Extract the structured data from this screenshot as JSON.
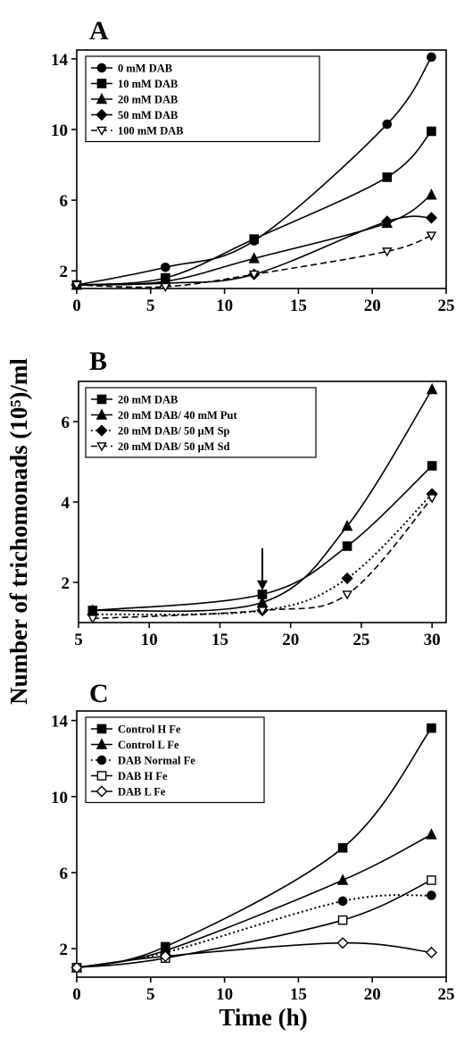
{
  "chart_data": [
    {
      "type": "line",
      "panel": "A",
      "xlim": [
        0,
        25
      ],
      "ylim": [
        1,
        14.5
      ],
      "xticks": [
        0,
        5,
        10,
        15,
        20,
        25
      ],
      "yticks": [
        2,
        6,
        10,
        14
      ],
      "legend_position": "top-left",
      "series": [
        {
          "name": "0 mM DAB",
          "marker": "circle",
          "dash": "solid",
          "x": [
            0,
            6,
            12,
            21,
            24
          ],
          "y": [
            1.2,
            2.2,
            3.7,
            10.3,
            14.1
          ]
        },
        {
          "name": "10 mM DAB",
          "marker": "square",
          "dash": "solid",
          "x": [
            0,
            6,
            12,
            21,
            24
          ],
          "y": [
            1.2,
            1.6,
            3.8,
            7.3,
            9.9
          ]
        },
        {
          "name": "20 mM DAB",
          "marker": "triangle",
          "dash": "solid",
          "x": [
            0,
            6,
            12,
            21,
            24
          ],
          "y": [
            1.2,
            1.4,
            2.7,
            4.7,
            6.3
          ]
        },
        {
          "name": "50 mM DAB",
          "marker": "diamond",
          "dash": "solid",
          "x": [
            0,
            6,
            12,
            21,
            24
          ],
          "y": [
            1.2,
            1.3,
            1.8,
            4.8,
            5.0
          ]
        },
        {
          "name": "100 mM DAB",
          "marker": "triangle-down-open",
          "dash": "dashed",
          "x": [
            0,
            6,
            12,
            21,
            24
          ],
          "y": [
            1.2,
            1.1,
            1.8,
            3.1,
            4.0
          ]
        }
      ]
    },
    {
      "type": "line",
      "panel": "B",
      "xlim": [
        5,
        31
      ],
      "ylim": [
        1,
        7
      ],
      "xticks": [
        5,
        10,
        15,
        20,
        25,
        30
      ],
      "yticks": [
        2,
        4,
        6
      ],
      "legend_position": "top-left",
      "annotation": "arrow at x = 18",
      "series": [
        {
          "name": "20 mM DAB",
          "marker": "square",
          "dash": "solid",
          "x": [
            6,
            18,
            24,
            30
          ],
          "y": [
            1.3,
            1.7,
            2.9,
            4.9
          ]
        },
        {
          "name": "20 mM DAB/ 40 mM Put",
          "marker": "triangle",
          "dash": "solid",
          "x": [
            6,
            18,
            24,
            30
          ],
          "y": [
            1.3,
            1.5,
            3.4,
            6.8
          ]
        },
        {
          "name": "20 mM DAB/ 50 μM Sp",
          "marker": "diamond",
          "dash": "dotted",
          "x": [
            6,
            18,
            24,
            30
          ],
          "y": [
            1.2,
            1.3,
            2.1,
            4.2
          ]
        },
        {
          "name": "20 mM DAB/ 50 μM Sd",
          "marker": "triangle-down-open",
          "dash": "dashed",
          "x": [
            6,
            18,
            24,
            30
          ],
          "y": [
            1.1,
            1.3,
            1.7,
            4.1
          ]
        }
      ]
    },
    {
      "type": "line",
      "panel": "C",
      "xlim": [
        0,
        25
      ],
      "ylim": [
        0.5,
        14.5
      ],
      "xticks": [
        0,
        5,
        10,
        15,
        20,
        25
      ],
      "yticks": [
        2,
        6,
        10,
        14
      ],
      "legend_position": "top-left",
      "xlabel": "Time (h)",
      "series": [
        {
          "name": "Control H Fe",
          "marker": "square",
          "dash": "solid",
          "x": [
            0,
            6,
            18,
            24
          ],
          "y": [
            1.0,
            2.1,
            7.3,
            13.6
          ]
        },
        {
          "name": "Control L Fe",
          "marker": "triangle",
          "dash": "solid",
          "x": [
            0,
            6,
            18,
            24
          ],
          "y": [
            1.0,
            1.9,
            5.6,
            8.0
          ]
        },
        {
          "name": "DAB Normal Fe",
          "marker": "circle",
          "dash": "dotted",
          "x": [
            0,
            6,
            18,
            24
          ],
          "y": [
            1.0,
            1.8,
            4.5,
            4.8
          ]
        },
        {
          "name": "DAB H Fe",
          "marker": "square-open",
          "dash": "solid",
          "x": [
            0,
            6,
            18,
            24
          ],
          "y": [
            1.0,
            1.5,
            3.5,
            5.6
          ]
        },
        {
          "name": "DAB L Fe",
          "marker": "diamond-open",
          "dash": "solid",
          "x": [
            0,
            6,
            18,
            24
          ],
          "y": [
            1.0,
            1.6,
            2.3,
            1.8
          ]
        }
      ]
    }
  ],
  "ylabel": "Number of trichomonads (10⁵)/ml"
}
